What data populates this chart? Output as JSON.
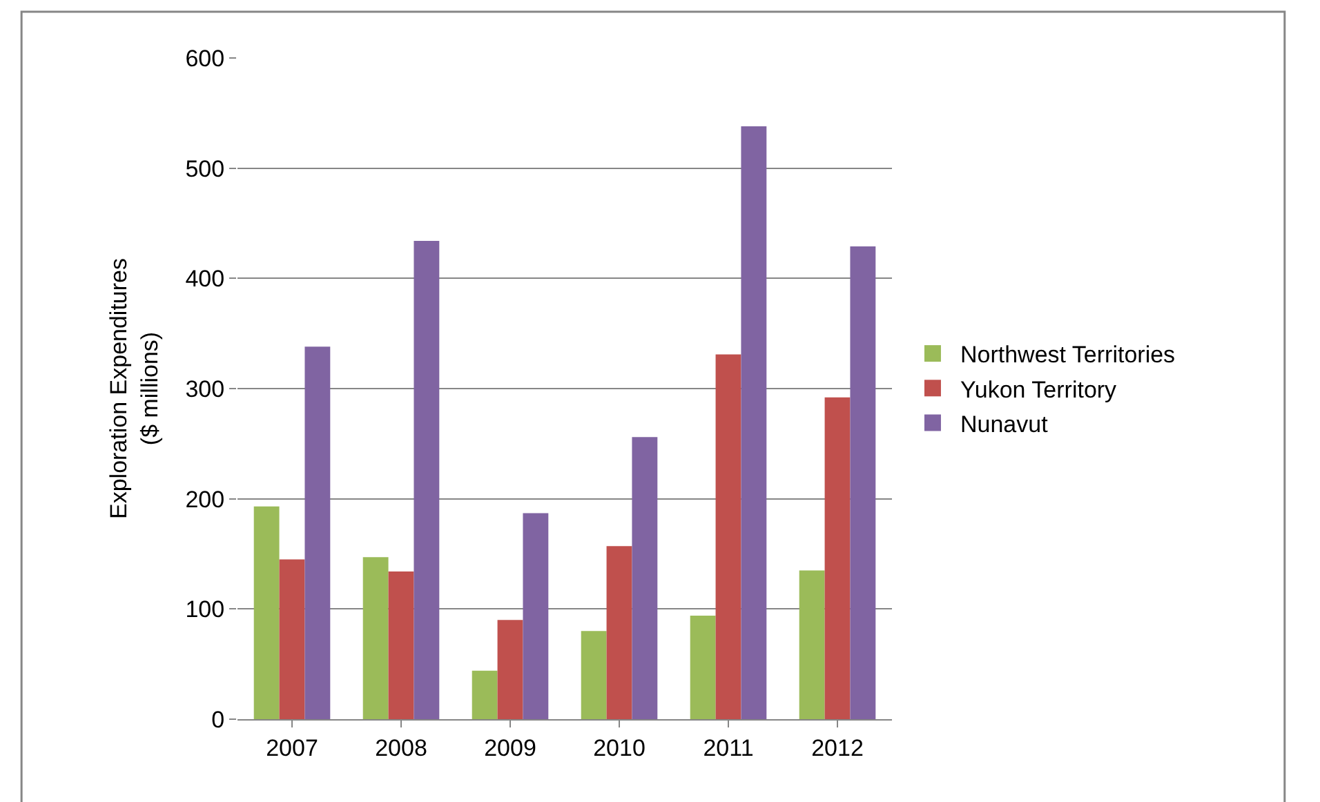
{
  "chart_data": {
    "type": "bar",
    "ylabel": "Exploration Expenditures\n($ millions)",
    "categories": [
      "2007",
      "2008",
      "2009",
      "2010",
      "2011",
      "2012"
    ],
    "series": [
      {
        "name": "Northwest Territories",
        "color": "#9bbb59",
        "values": [
          193,
          147,
          44,
          80,
          94,
          135
        ]
      },
      {
        "name": "Yukon Territory",
        "color": "#c0504d",
        "values": [
          145,
          134,
          90,
          157,
          331,
          292
        ]
      },
      {
        "name": "Nunavut",
        "color": "#8064a2",
        "values": [
          338,
          434,
          187,
          256,
          538,
          429
        ]
      }
    ],
    "ylim": [
      0,
      600
    ],
    "yticks": [
      0,
      100,
      200,
      300,
      400,
      500,
      600
    ],
    "grid": "y",
    "legend": "right"
  }
}
